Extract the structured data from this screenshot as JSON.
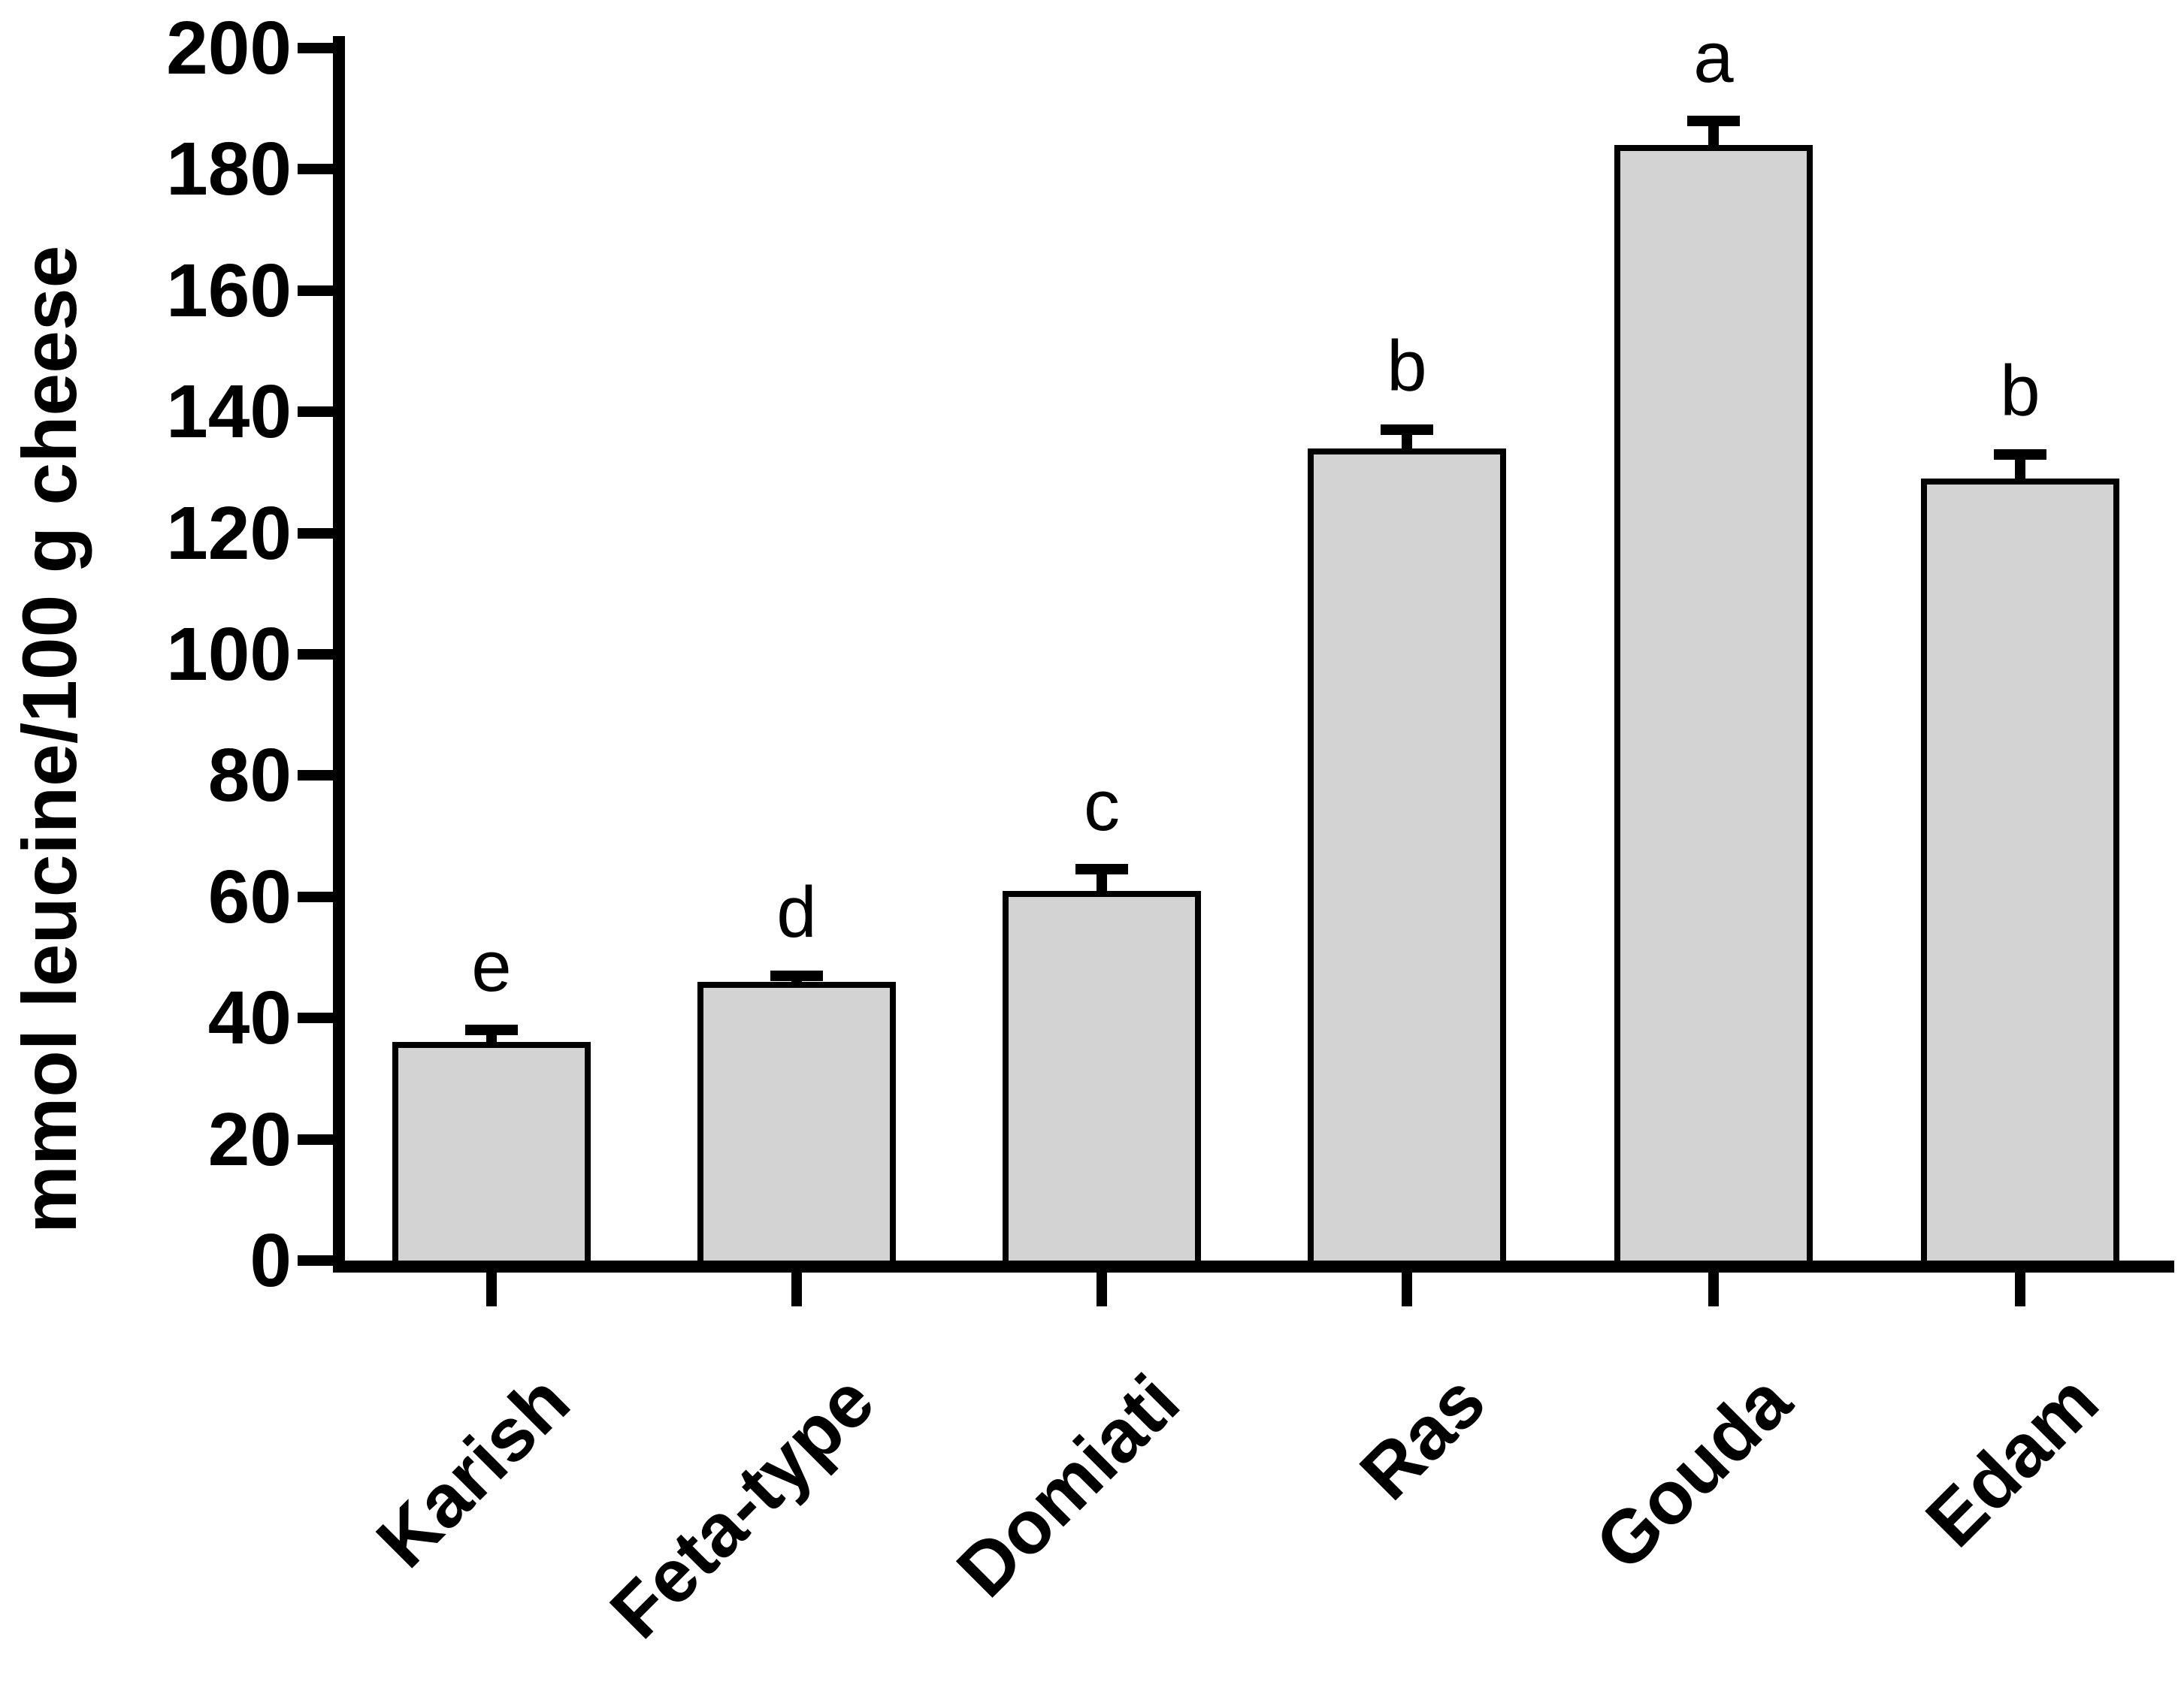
{
  "figure": {
    "background": "#ffffff"
  },
  "chart_data": {
    "type": "bar",
    "title": "",
    "xlabel": "",
    "ylabel": "mmol leucine/100 g cheese",
    "categories": [
      "Karish",
      "Feta-type",
      "Domiati",
      "Ras",
      "Gouda",
      "Edam"
    ],
    "series": [
      {
        "name": "mmol leucine/100 g cheese",
        "values": [
          36,
          46,
          61,
          134,
          184,
          129
        ],
        "error_plus": [
          2,
          1,
          3.5,
          3,
          4,
          4
        ],
        "significance_letters": [
          "e",
          "d",
          "c",
          "b",
          "a",
          "b"
        ]
      }
    ],
    "ylim": [
      0,
      200
    ],
    "yticks": [
      0,
      20,
      40,
      60,
      80,
      100,
      120,
      140,
      160,
      180,
      200
    ],
    "grid": false,
    "legend_position": "none",
    "bar_fill_color": "#d3d3d3",
    "bar_border_color": "#000000",
    "axis_color": "#000000",
    "text_color": "#000000"
  }
}
